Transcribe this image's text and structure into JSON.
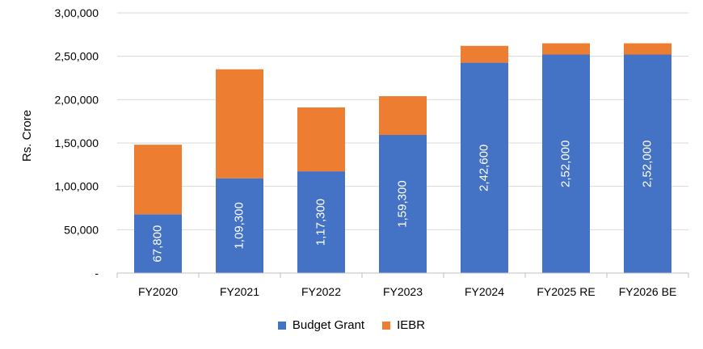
{
  "chart_data": {
    "type": "bar",
    "stacked": true,
    "categories": [
      "FY2020",
      "FY2021",
      "FY2022",
      "FY2023",
      "FY2024",
      "FY2025 RE",
      "FY2026 BE"
    ],
    "series": [
      {
        "name": "Budget Grant",
        "color": "#4472C4",
        "values": [
          67800,
          109300,
          117300,
          159300,
          242600,
          252000,
          252000
        ],
        "labels": [
          "67,800",
          "1,09,300",
          "1,17,300",
          "1,59,300",
          "2,42,600",
          "2,52,000",
          "2,52,000"
        ]
      },
      {
        "name": "IEBR",
        "color": "#ED7D31",
        "values": [
          80200,
          125700,
          73700,
          44700,
          19400,
          13000,
          13000
        ]
      }
    ],
    "title": "",
    "xlabel": "",
    "ylabel": "Rs. Crore",
    "ylim": [
      0,
      300000
    ],
    "yticks": [
      0,
      50000,
      100000,
      150000,
      200000,
      250000,
      300000
    ],
    "ytick_labels": [
      "-",
      "50,000",
      "1,00,000",
      "1,50,000",
      "2,00,000",
      "2,50,000",
      "3,00,000"
    ],
    "grid": true,
    "legend_position": "bottom"
  }
}
